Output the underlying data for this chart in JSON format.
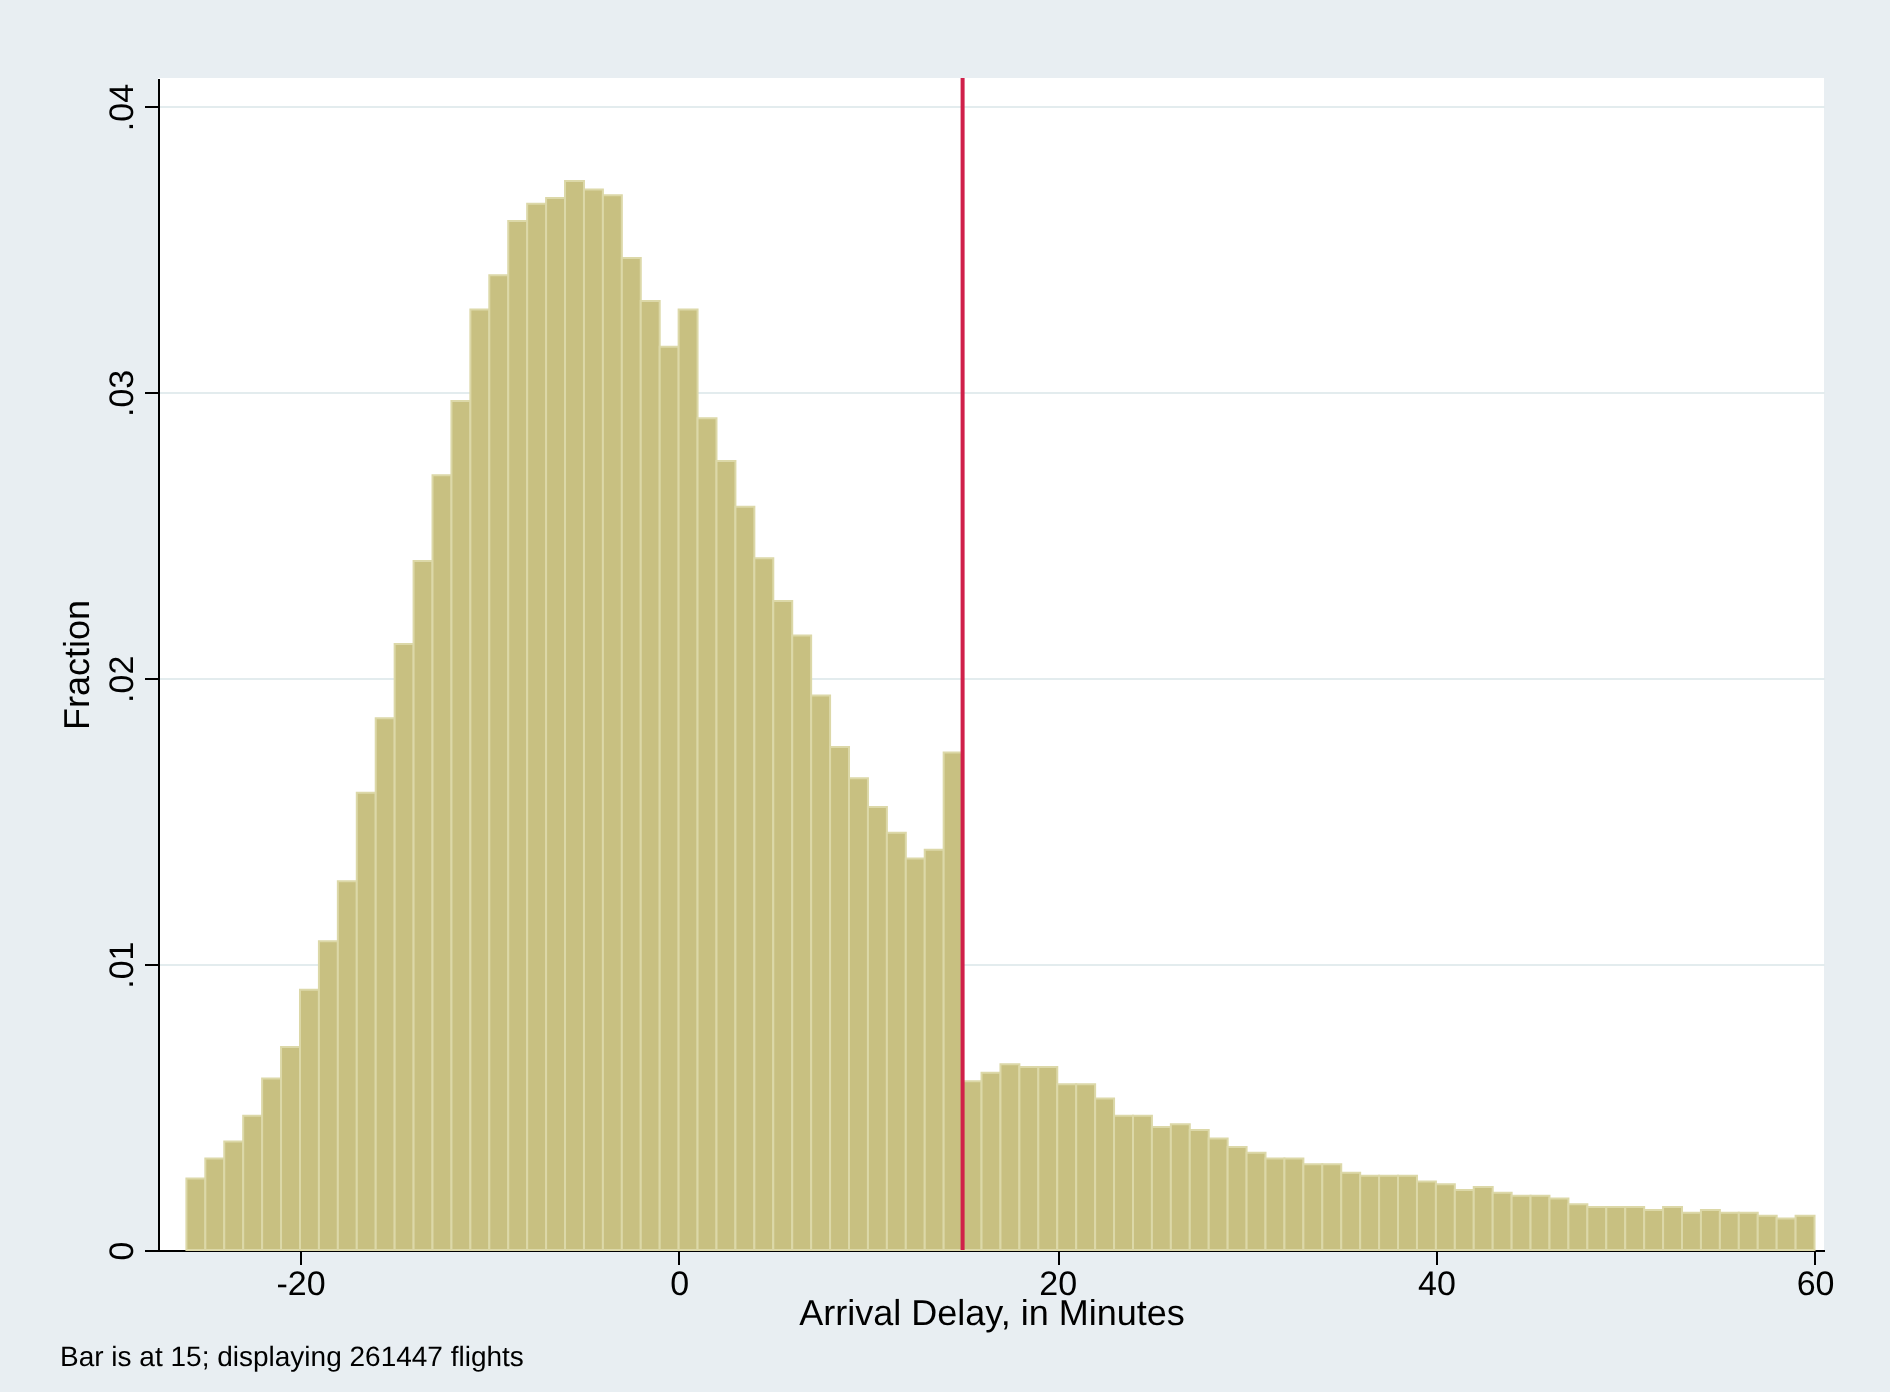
{
  "chart_data": {
    "type": "histogram",
    "xlabel": "Arrival Delay, in Minutes",
    "ylabel": "Fraction",
    "bins": [
      -26,
      -25,
      -24,
      -23,
      -22,
      -21,
      -20,
      -19,
      -18,
      -17,
      -16,
      -15,
      -14,
      -13,
      -12,
      -11,
      -10,
      -9,
      -8,
      -7,
      -6,
      -5,
      -4,
      -3,
      -2,
      -1,
      0,
      1,
      2,
      3,
      4,
      5,
      6,
      7,
      8,
      9,
      10,
      11,
      12,
      13,
      14,
      15,
      16,
      17,
      18,
      19,
      20,
      21,
      22,
      23,
      24,
      25,
      26,
      27,
      28,
      29,
      30,
      31,
      32,
      33,
      34,
      35,
      36,
      37,
      38,
      39,
      40,
      41,
      42,
      43,
      44,
      45,
      46,
      47,
      48,
      49,
      50,
      51,
      52,
      53,
      54,
      55,
      56,
      57,
      58,
      59,
      60
    ],
    "values": [
      0.0025,
      0.0032,
      0.0038,
      0.0047,
      0.006,
      0.0071,
      0.0091,
      0.0108,
      0.0129,
      0.016,
      0.0186,
      0.0212,
      0.0241,
      0.0271,
      0.0297,
      0.0329,
      0.0341,
      0.036,
      0.0366,
      0.0368,
      0.0374,
      0.0371,
      0.0369,
      0.0347,
      0.0332,
      0.0316,
      0.0329,
      0.0291,
      0.0276,
      0.026,
      0.0242,
      0.0227,
      0.0215,
      0.0194,
      0.0176,
      0.0165,
      0.0155,
      0.0146,
      0.0137,
      0.014,
      0.0174,
      0.0059,
      0.0062,
      0.0065,
      0.0064,
      0.0064,
      0.0058,
      0.0058,
      0.0053,
      0.0047,
      0.0047,
      0.0043,
      0.0044,
      0.0042,
      0.0039,
      0.0036,
      0.0034,
      0.0032,
      0.0032,
      0.003,
      0.003,
      0.0027,
      0.0026,
      0.0026,
      0.0026,
      0.0024,
      0.0023,
      0.0021,
      0.0022,
      0.002,
      0.0019,
      0.0019,
      0.0018,
      0.0016,
      0.0015,
      0.0015,
      0.0015,
      0.0014,
      0.0015,
      0.0013,
      0.0014,
      0.0013,
      0.0013,
      0.0012,
      0.0011,
      0.0012
    ],
    "color": "#c8c081",
    "xlim": [
      -27.5,
      60.5
    ],
    "ylim": [
      0,
      0.041
    ],
    "xticks": [
      -20,
      0,
      20,
      40,
      60
    ],
    "yticks": [
      0,
      {
        "value": 0.01,
        "label": ".01"
      },
      {
        "value": 0.02,
        "label": ".02"
      },
      {
        "value": 0.03,
        "label": ".03"
      },
      {
        "value": 0.04,
        "label": ".04"
      }
    ],
    "grid": "y",
    "ref_lines": [
      {
        "axis": "x",
        "value": 15,
        "color": "#d0204a"
      }
    ],
    "annotations": [
      "Bar is at 15; displaying 261447 flights"
    ]
  }
}
